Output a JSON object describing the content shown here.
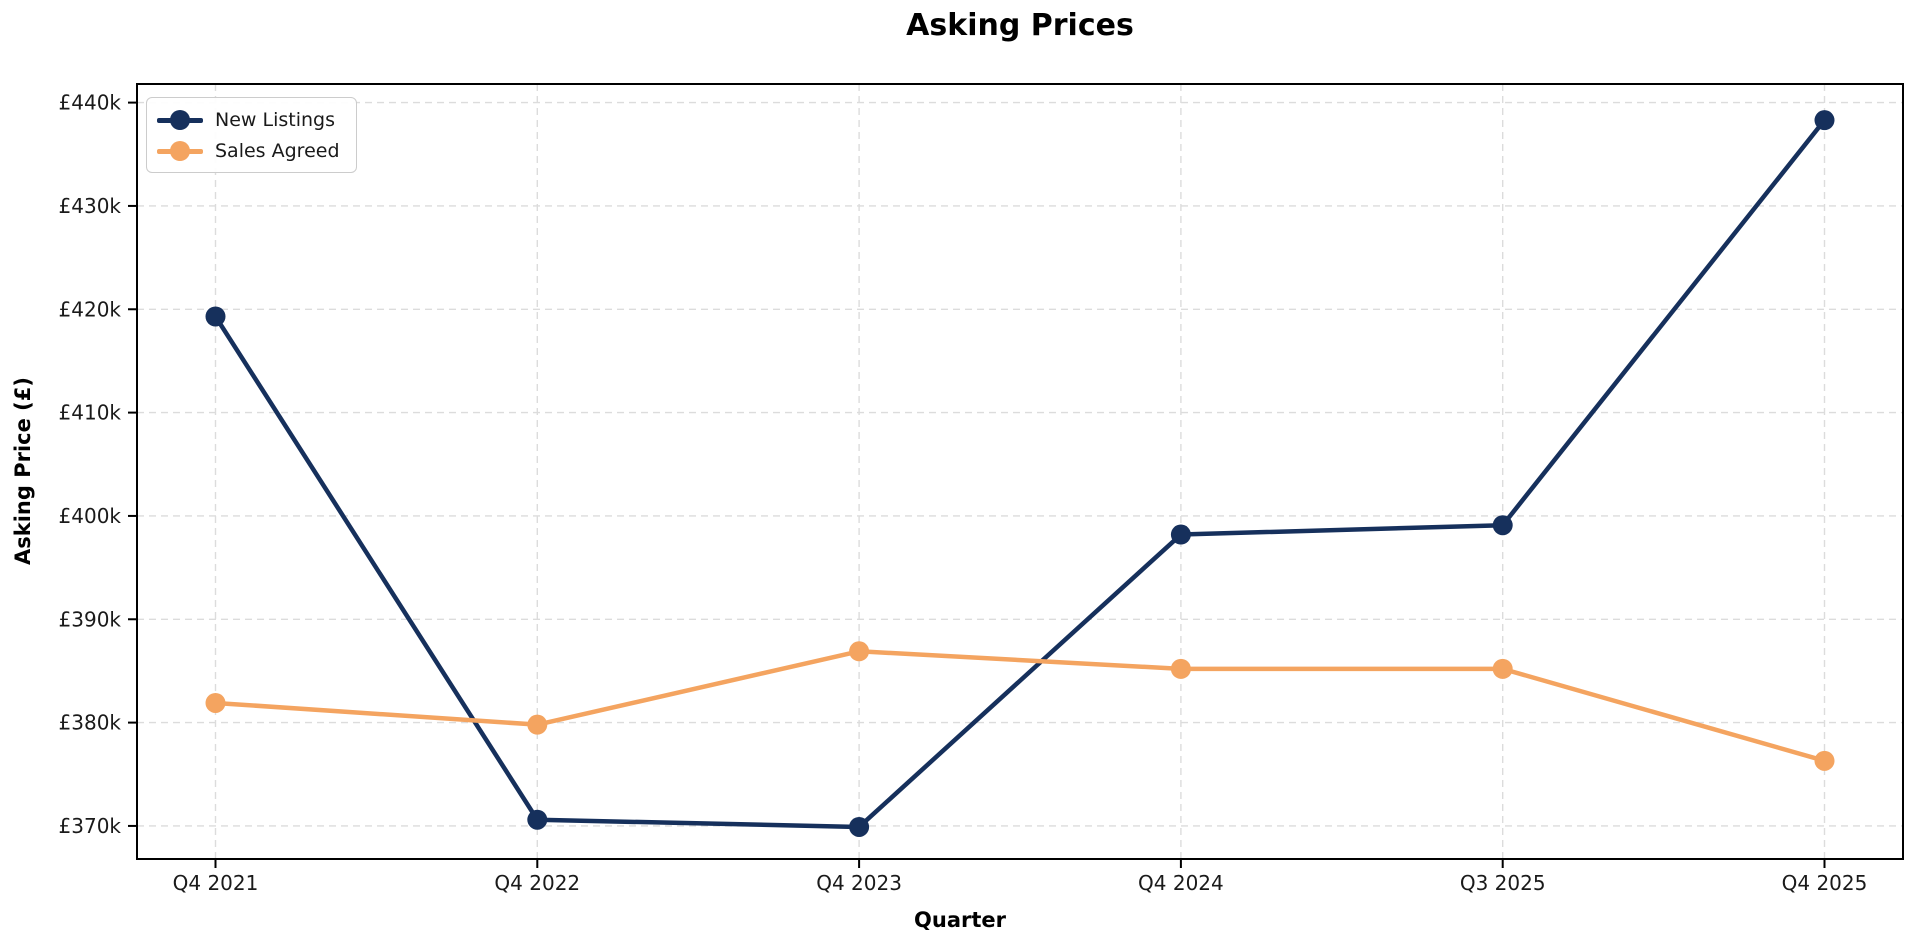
{
  "title": "Asking Prices",
  "chart_data": {
    "type": "line",
    "categories": [
      "Q4 2021",
      "Q4 2022",
      "Q4 2023",
      "Q4 2024",
      "Q3 2025",
      "Q4 2025"
    ],
    "series": [
      {
        "name": "New Listings",
        "color": "#16305c",
        "values": [
          419300,
          370600,
          369900,
          398200,
          399100,
          438300
        ]
      },
      {
        "name": "Sales Agreed",
        "color": "#f4a460",
        "values": [
          381900,
          379800,
          386900,
          385200,
          385200,
          376300
        ]
      }
    ],
    "title": "Asking Prices",
    "xlabel": "Quarter",
    "ylabel": "Asking Price (£)",
    "ylim": [
      366800,
      441800
    ],
    "yticks": [
      370000,
      380000,
      390000,
      400000,
      410000,
      420000,
      430000,
      440000
    ],
    "ytick_labels": [
      "£370k",
      "£380k",
      "£390k",
      "£400k",
      "£410k",
      "£420k",
      "£430k",
      "£440k"
    ],
    "grid": true,
    "grid_style": "dashed",
    "grid_color": "#dcdcdc",
    "spine_color": "#000000",
    "legend_position": "upper-left"
  }
}
